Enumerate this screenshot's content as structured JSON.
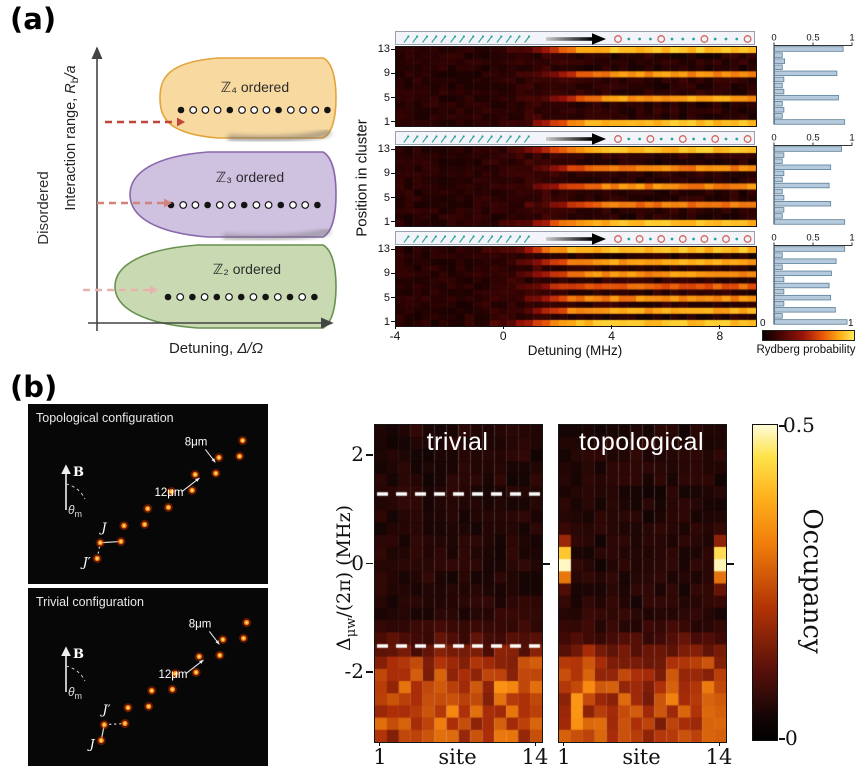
{
  "figure": {
    "panel_a_label": "(a)",
    "panel_b_label": "(b)"
  },
  "panel_a": {
    "phase_diagram": {
      "ylabel_pre": "Interaction range, ",
      "ylabel_sym": "R",
      "ylabel_sub": "b",
      "ylabel_post": "/a",
      "xlabel_pre": "Detuning, ",
      "xlabel_sym": "Δ/Ω",
      "disordered": "Disordered",
      "lobes": [
        {
          "label": "ℤ₄ ordered",
          "fill": "#f8d9a0",
          "stroke": "#e2a43c",
          "pattern": "●○○○●○○○●○○○●"
        },
        {
          "label": "ℤ₃ ordered",
          "fill": "#cfc1e0",
          "stroke": "#8a68ab",
          "pattern": "●○○●○○●○○●○○●"
        },
        {
          "label": "ℤ₂ ordered",
          "fill": "#c9dab3",
          "stroke": "#69914f",
          "pattern": "●○●○●○●○●○●○●"
        }
      ],
      "arrow_colors": [
        "#c0463c",
        "#d4837c",
        "#e7b3ae"
      ]
    },
    "heatmaps": {
      "ylabel": "Position in cluster",
      "xlabel": "Detuning (MHz)",
      "x_ticks": [
        "-4",
        "0",
        "4",
        "8"
      ],
      "x_tick_values": [
        -4,
        0,
        4,
        8
      ],
      "y_ticks": [
        "13",
        "9",
        "5",
        "1"
      ],
      "x_range": [
        -4,
        9.3
      ],
      "n_positions": 13,
      "panels": [
        {
          "name": "Z4 ordered chain",
          "transition_mhz": 2.3,
          "pattern": "●○○○●○○○●○○○●",
          "hist_values": [
            0.9,
            0.1,
            0.12,
            0.1,
            0.82,
            0.12,
            0.1,
            0.12,
            0.8,
            0.1,
            0.13,
            0.1,
            0.88
          ]
        },
        {
          "name": "Z3 ordered chain",
          "transition_mhz": 2.1,
          "pattern": "●○○●○○●○○●○○●",
          "hist_values": [
            0.9,
            0.1,
            0.12,
            0.72,
            0.12,
            0.1,
            0.7,
            0.1,
            0.12,
            0.72,
            0.1,
            0.12,
            0.86
          ]
        },
        {
          "name": "Z2 ordered chain",
          "transition_mhz": 1.6,
          "pattern": "●○●○●○●○●○●○●",
          "hist_values": [
            0.93,
            0.1,
            0.78,
            0.12,
            0.72,
            0.12,
            0.7,
            0.12,
            0.73,
            0.1,
            0.79,
            0.1,
            0.9
          ]
        }
      ],
      "hist_axis_ticks": [
        "0",
        "0.5",
        "1"
      ],
      "colorbar": {
        "min": "0",
        "max": "1",
        "label": "Rydberg probability"
      }
    }
  },
  "panel_b": {
    "configs": [
      {
        "title": "Topological configuration",
        "b_label": "B",
        "theta_sym": "θ",
        "theta_sub": "m",
        "j_strong": "J",
        "j_weak": "J′",
        "dist_short": "8μm",
        "dist_long": "12μm",
        "edge_bond": "weak"
      },
      {
        "title": "Trivial configuration",
        "b_label": "B",
        "theta_sym": "θ",
        "theta_sub": "m",
        "j_strong": "J",
        "j_weak": "J′",
        "dist_short": "8μm",
        "dist_long": "12μm",
        "edge_bond": "strong"
      }
    ],
    "heatmaps": {
      "titles": [
        "trivial",
        "topological"
      ],
      "ylabel_sym": "Δ",
      "ylabel_sub": "μw",
      "ylabel_post": "/(2π) (MHz)",
      "y_ticks": [
        "2",
        "0",
        "-2"
      ],
      "y_tick_values": [
        2,
        0,
        -2
      ],
      "xlabel": "site",
      "x_ticks": [
        "1",
        "14"
      ],
      "n_sites": 14,
      "y_range": [
        2.57,
        -3.27
      ],
      "bulk_band_mhz": -1.55,
      "bulk_occupancy": 0.27,
      "edge_sites": [
        1,
        14
      ],
      "edge_occupancy": 0.5,
      "edge_center_mhz": 0,
      "dashed_lines_mhz": [
        1.3,
        -1.5
      ],
      "colorbar": {
        "max": "0.5",
        "min": "0",
        "label": "Occupancy"
      }
    }
  },
  "chart_data": [
    {
      "type": "heatmap",
      "title": "Rydberg probability vs detuning for three interaction ranges",
      "xlabel": "Detuning (MHz)",
      "ylabel": "Position in cluster",
      "x_range": [
        -4,
        9.3
      ],
      "rows": 13,
      "panels": [
        {
          "order": "Z4",
          "ordered_positions": [
            1,
            5,
            9,
            13
          ],
          "transition_mhz": 2.3,
          "ordered_probability": 0.85,
          "disordered_probability": 0.1
        },
        {
          "order": "Z3",
          "ordered_positions": [
            1,
            4,
            7,
            10,
            13
          ],
          "transition_mhz": 2.1,
          "ordered_probability": 0.78,
          "disordered_probability": 0.1
        },
        {
          "order": "Z2",
          "ordered_positions": [
            1,
            3,
            5,
            7,
            9,
            11,
            13
          ],
          "transition_mhz": 1.6,
          "ordered_probability": 0.8,
          "disordered_probability": 0.1
        }
      ],
      "colorbar": {
        "min": 0,
        "max": 1,
        "label": "Rydberg probability"
      }
    },
    {
      "type": "heatmap",
      "title": "Occupancy vs site and microwave detuning",
      "xlabel": "site",
      "ylabel": "Δμw/(2π) (MHz)",
      "x_range": [
        1,
        14
      ],
      "y_range": [
        2.57,
        -3.27
      ],
      "panels": [
        {
          "name": "trivial",
          "edge_states": false,
          "bulk_band_below_mhz": -1.5,
          "bulk_occupancy": 0.27,
          "dashed_lines_mhz": [
            1.3,
            -1.5
          ]
        },
        {
          "name": "topological",
          "edge_states": true,
          "edge_sites": [
            1,
            14
          ],
          "edge_occupancy": 0.5,
          "edge_center_mhz": 0,
          "bulk_band_below_mhz": -1.5,
          "bulk_occupancy": 0.27
        }
      ],
      "colorbar": {
        "min": 0,
        "max": 0.5,
        "label": "Occupancy"
      }
    }
  ]
}
